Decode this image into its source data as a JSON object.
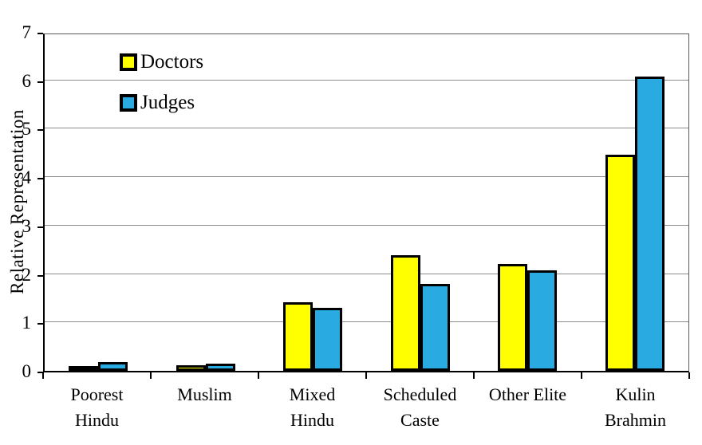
{
  "chart_data": {
    "type": "bar",
    "title": "",
    "xlabel": "",
    "ylabel": "Relative Representation",
    "ylim": [
      0,
      7
    ],
    "yticks": [
      0,
      1,
      2,
      3,
      4,
      5,
      6,
      7
    ],
    "grid": true,
    "legend_position": "top-left-inside",
    "categories": [
      "Poorest Hindu",
      "Muslim",
      "Mixed Hindu",
      "Scheduled Caste",
      "Other Elite",
      "Kulin Brahmin"
    ],
    "tick_labels": [
      "Poorest\nHindu",
      "Muslim",
      "Mixed\nHindu",
      "Scheduled\nCaste",
      "Other Elite",
      "Kulin\nBrahmin"
    ],
    "series": [
      {
        "name": "Doctors",
        "color": "#FFFF00",
        "values": [
          0.08,
          0.11,
          1.42,
          2.39,
          2.21,
          4.46
        ]
      },
      {
        "name": "Judges",
        "color": "#29ABE2",
        "values": [
          0.18,
          0.15,
          1.3,
          1.8,
          2.08,
          6.08
        ]
      }
    ],
    "bar_border_color": "#000000"
  },
  "styles": {
    "gridline_color": "#8C8C8C",
    "axis_color": "#000000",
    "background": "#FFFFFF"
  }
}
